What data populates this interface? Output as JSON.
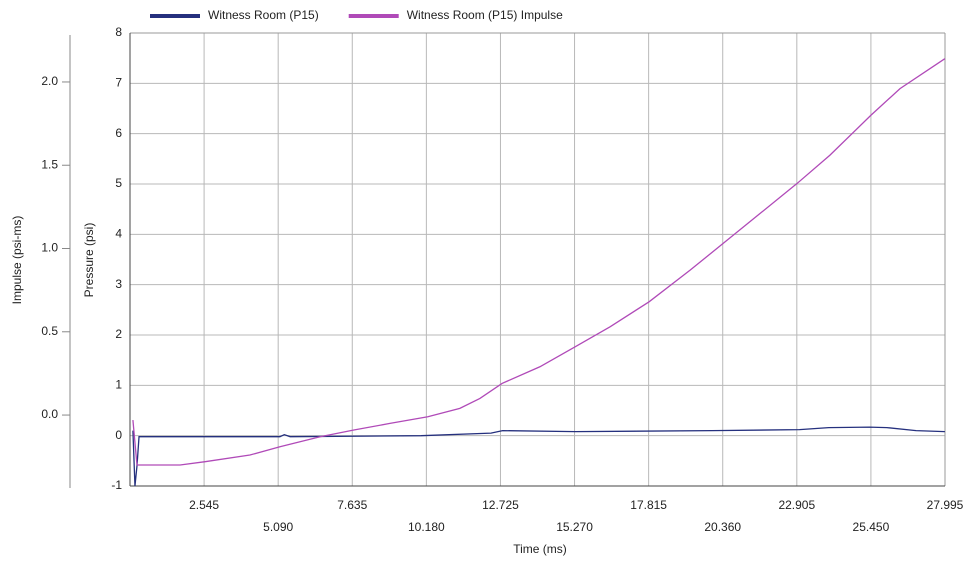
{
  "chart_data": {
    "type": "line",
    "xlabel": "Time (ms)",
    "ylabel": "Pressure (psi)",
    "y2label": "Impulse (psi-ms)",
    "xlim": [
      0,
      27.995
    ],
    "xticks": [
      2.545,
      {
        "value": 5.09,
        "label": "5.090"
      },
      7.635,
      {
        "value": 10.18,
        "label": "10.180"
      },
      12.725,
      {
        "value": 15.27,
        "label": "15.270"
      },
      17.815,
      {
        "value": 20.36,
        "label": "20.360"
      },
      22.905,
      {
        "value": 25.45,
        "label": "25.450"
      },
      27.995
    ],
    "ylim": [
      -1,
      8
    ],
    "yticks": [
      -1,
      0,
      1,
      2,
      3,
      4,
      5,
      6,
      7,
      8
    ],
    "y2lim": [
      -0.426,
      2.294
    ],
    "y2ticks": [
      {
        "value": 0,
        "label": "0.0"
      },
      {
        "value": 0.5,
        "label": "0.5"
      },
      {
        "value": 1,
        "label": "1.0"
      },
      {
        "value": 1.5,
        "label": "1.5"
      },
      {
        "value": 2,
        "label": "2.0"
      }
    ],
    "grid": true,
    "legend": "top",
    "series": [
      {
        "name": "Witness Room (P15)",
        "color": "#25307e",
        "x": [
          0.1,
          0.17,
          0.24,
          0.31,
          5.15,
          5.3,
          5.5,
          10.0,
          12.4,
          12.8,
          15.3,
          20.0,
          23.0,
          24.0,
          25.4,
          26.0,
          27.0,
          27.99
        ],
        "values": [
          0.1,
          -1.0,
          -0.6,
          -0.02,
          -0.02,
          0.02,
          -0.02,
          0.0,
          0.05,
          0.1,
          0.08,
          0.1,
          0.12,
          0.16,
          0.17,
          0.16,
          0.1,
          0.08
        ]
      },
      {
        "name": "Witness Room (P15) Impulse",
        "color": "#b04ab8",
        "axis": "y2",
        "x": [
          0.1,
          0.24,
          1.72,
          2.58,
          4.12,
          5.15,
          6.53,
          7.69,
          8.93,
          10.23,
          11.33,
          12.02,
          12.78,
          14.08,
          15.29,
          16.49,
          17.83,
          19.24,
          20.37,
          21.64,
          22.91,
          24.04,
          25.45,
          26.45,
          27.99
        ],
        "values": [
          -0.03,
          -0.3,
          -0.3,
          -0.28,
          -0.24,
          -0.19,
          -0.13,
          -0.09,
          -0.05,
          -0.01,
          0.04,
          0.1,
          0.19,
          0.29,
          0.41,
          0.53,
          0.68,
          0.87,
          1.03,
          1.21,
          1.39,
          1.56,
          1.8,
          1.96,
          2.14
        ]
      }
    ]
  }
}
